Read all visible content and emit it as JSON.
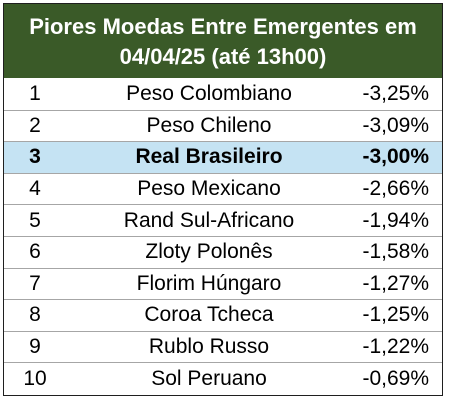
{
  "table": {
    "title_line1": "Piores Moedas Entre Emergentes em",
    "title_line2": "04/04/25 (até 13h00)",
    "colors": {
      "header_bg": "#3a5a28",
      "header_text": "#ffffff",
      "highlight_bg": "#c5e3f3",
      "row_divider": "#a6a6a6"
    },
    "rows": [
      {
        "rank": "1",
        "currency": "Peso Colombiano",
        "change": "-3,25%",
        "highlight": false
      },
      {
        "rank": "2",
        "currency": "Peso Chileno",
        "change": "-3,09%",
        "highlight": false
      },
      {
        "rank": "3",
        "currency": "Real Brasileiro",
        "change": "-3,00%",
        "highlight": true
      },
      {
        "rank": "4",
        "currency": "Peso Mexicano",
        "change": "-2,66%",
        "highlight": false
      },
      {
        "rank": "5",
        "currency": "Rand Sul-Africano",
        "change": "-1,94%",
        "highlight": false
      },
      {
        "rank": "6",
        "currency": "Zloty Polonês",
        "change": "-1,58%",
        "highlight": false
      },
      {
        "rank": "7",
        "currency": "Florim Húngaro",
        "change": "-1,27%",
        "highlight": false
      },
      {
        "rank": "8",
        "currency": "Coroa Tcheca",
        "change": "-1,25%",
        "highlight": false
      },
      {
        "rank": "9",
        "currency": "Rublo Russo",
        "change": "-1,22%",
        "highlight": false
      },
      {
        "rank": "10",
        "currency": "Sol Peruano",
        "change": "-0,69%",
        "highlight": false
      }
    ]
  }
}
